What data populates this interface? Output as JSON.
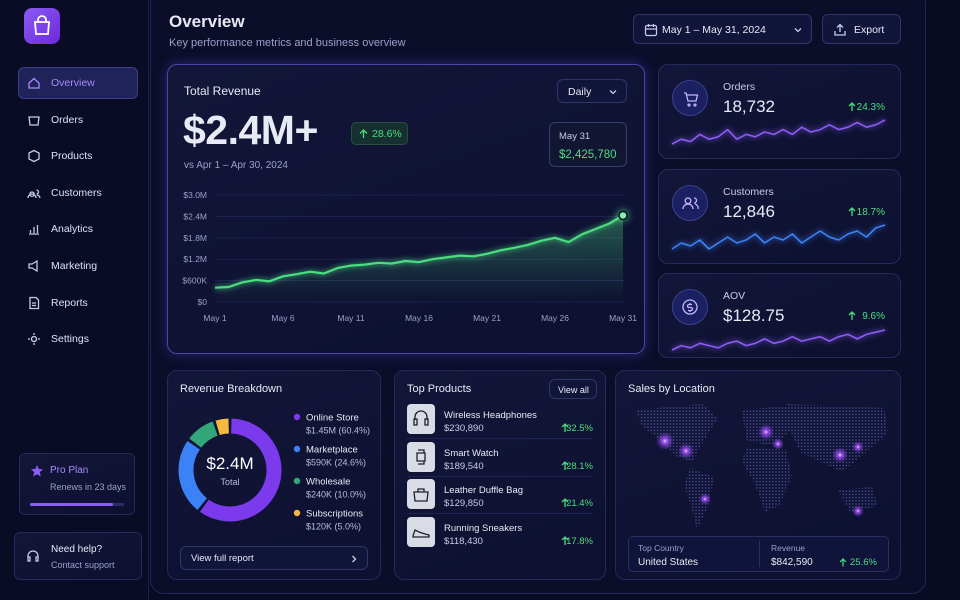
{
  "sidebar": {
    "nav": [
      "Overview",
      "Orders",
      "Products",
      "Customers",
      "Analytics",
      "Marketing",
      "Reports",
      "Settings"
    ],
    "plan": {
      "title": "Pro Plan",
      "subtitle": "Renews in 23 days",
      "progress": 88
    },
    "help": {
      "title": "Need help?",
      "subtitle": "Contact support"
    }
  },
  "header": {
    "title": "Overview",
    "subtitle": "Key performance metrics and business overview",
    "date_range": "May 1 – May 31, 2024",
    "export": "Export"
  },
  "revenue": {
    "title": "Total Revenue",
    "period": "Daily",
    "value": "$2.4M+",
    "change": "28.6%",
    "compare": "vs Apr 1 – Apr 30, 2024",
    "tooltip": {
      "date": "May 31",
      "value": "$2,425,780"
    }
  },
  "kpis": [
    {
      "label": "Orders",
      "value": "18,732",
      "change": "24.3%"
    },
    {
      "label": "Customers",
      "value": "12,846",
      "change": "18.7%"
    },
    {
      "label": "AOV",
      "value": "$128.75",
      "change": "9.6%"
    }
  ],
  "breakdown": {
    "title": "Revenue Breakdown",
    "button": "View full report"
  },
  "products": {
    "title": "Top Products",
    "button": "View all",
    "items": [
      {
        "name": "Wireless Headphones",
        "revenue": "$230,890",
        "change": "32.5%"
      },
      {
        "name": "Smart Watch",
        "revenue": "$189,540",
        "change": "28.1%"
      },
      {
        "name": "Leather Duffle Bag",
        "revenue": "$129,850",
        "change": "21.4%"
      },
      {
        "name": "Running Sneakers",
        "revenue": "$118,430",
        "change": "17.8%"
      }
    ]
  },
  "location": {
    "title": "Sales by Location",
    "top_country_label": "Top Country",
    "top_country": "United States",
    "revenue_label": "Revenue",
    "revenue": "$842,590",
    "change": "25.6%"
  },
  "chart_data": [
    {
      "type": "line",
      "categories": [
        "May 1",
        null,
        null,
        null,
        null,
        "May 6",
        null,
        null,
        null,
        null,
        "May 11",
        null,
        null,
        null,
        null,
        "May 16",
        null,
        null,
        null,
        null,
        "May 21",
        null,
        null,
        null,
        null,
        "May 26",
        null,
        null,
        null,
        null,
        "May 31"
      ],
      "values": [
        400000,
        420000,
        550000,
        620000,
        580000,
        720000,
        780000,
        850000,
        800000,
        950000,
        1020000,
        1050000,
        1100000,
        1080000,
        1150000,
        1120000,
        1200000,
        1250000,
        1300000,
        1280000,
        1350000,
        1450000,
        1520000,
        1600000,
        1720000,
        1800000,
        1680000,
        1900000,
        2050000,
        2200000,
        2425780
      ],
      "color": "#4ade80",
      "ylim": [
        0,
        3000000
      ],
      "yticks": [
        {
          "value": 0,
          "label": "$0"
        },
        {
          "value": 600000,
          "label": "$600K"
        },
        {
          "value": 1200000,
          "label": "$1.2M"
        },
        {
          "value": 1800000,
          "label": "$1.8M"
        },
        {
          "value": 2400000,
          "label": "$2.4M"
        },
        {
          "value": 3000000,
          "label": "$3.0M"
        }
      ],
      "grid": true
    },
    {
      "type": "pie",
      "categories": [
        "Online Store",
        "Marketplace",
        "Wholesale",
        "Subscriptions"
      ],
      "values": [
        60.4,
        24.6,
        10.0,
        5.0
      ],
      "value_labels": [
        "$1.45M (60.4%)",
        "$590K (24.6%)",
        "$240K (10.0%)",
        "$120K (5.0%)"
      ],
      "colors": [
        "#7c3aed",
        "#3b82f6",
        "#34a77a",
        "#f5b942"
      ],
      "center_value": "$2.4M",
      "center_label": "Total"
    },
    {
      "type": "line",
      "values": [
        4,
        5,
        4.5,
        6,
        5,
        5.5,
        7,
        5,
        6,
        5.5,
        6.5,
        6,
        7,
        6,
        7.5,
        6.5,
        7,
        8,
        7,
        7.5,
        8.5,
        7.5,
        8,
        9
      ],
      "color": "#8b5cf6"
    },
    {
      "type": "line",
      "values": [
        5,
        6,
        5.5,
        6.5,
        5,
        6,
        7,
        6,
        6.5,
        7.5,
        6,
        7,
        6.5,
        7.5,
        6,
        7,
        8,
        7,
        6.5,
        7.5,
        8,
        7,
        8.5,
        9
      ],
      "color": "#3b82f6"
    },
    {
      "type": "line",
      "values": [
        4,
        5,
        4.5,
        5.5,
        5,
        4.5,
        5.5,
        6,
        5,
        5.5,
        6.5,
        5.5,
        6,
        7,
        6,
        6.5,
        7,
        6,
        7,
        7.5,
        6.5,
        7.5,
        8,
        8.5
      ],
      "color": "#8b5cf6"
    }
  ]
}
